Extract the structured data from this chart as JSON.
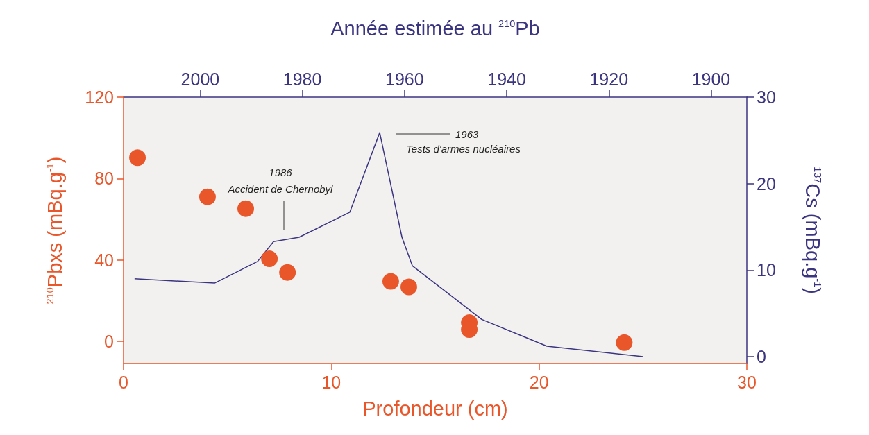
{
  "chart_data": {
    "type": "scatter",
    "xlabel": "Profondeur (cm)",
    "ylabel": "$^{210}$Pbxs (mBq.g$^{-1}$)",
    "y2label": "$^{137}$Cs (mBq.g$^{-1}$)",
    "x2label": "Année estimée au $^{210}$Pb",
    "xlim": [
      0,
      30
    ],
    "xticks": [
      0,
      10,
      20,
      30
    ],
    "ylim": [
      -11,
      120
    ],
    "yticks": [
      0,
      40,
      80,
      120
    ],
    "y2lim": [
      -0.8,
      30
    ],
    "y2ticks": [
      0,
      10,
      20,
      30
    ],
    "x2lim": [
      2015,
      1893
    ],
    "x2ticks": [
      2000,
      1980,
      1960,
      1940,
      1920,
      1900
    ],
    "grid": false,
    "annotations": [
      "1986\nAccident de Chernobyl",
      "1963\nTests d'armes nucléaires"
    ],
    "series": [
      {
        "color": "#e8562a",
        "marker": "circle",
        "x": [
          0.67,
          4.04,
          5.88,
          7.02,
          7.89,
          12.86,
          13.73,
          16.64,
          16.64,
          24.1
        ],
        "values": [
          90.2,
          71,
          65.2,
          40.5,
          33.8,
          29.4,
          26.7,
          9.1,
          5.7,
          -0.7
        ]
      },
      {
        "type": "line",
        "axis": "y2",
        "color": "#3b3580",
        "marker": "none",
        "x": [
          0.53,
          4.38,
          6.45,
          7.22,
          8.45,
          10.89,
          12.33,
          13.4,
          13.9,
          17.24,
          20.38,
          25.0
        ],
        "values": [
          9.0,
          8.5,
          11.0,
          13.3,
          13.8,
          16.7,
          25.9,
          13.8,
          10.5,
          4.3,
          1.2,
          0
        ]
      }
    ]
  }
}
